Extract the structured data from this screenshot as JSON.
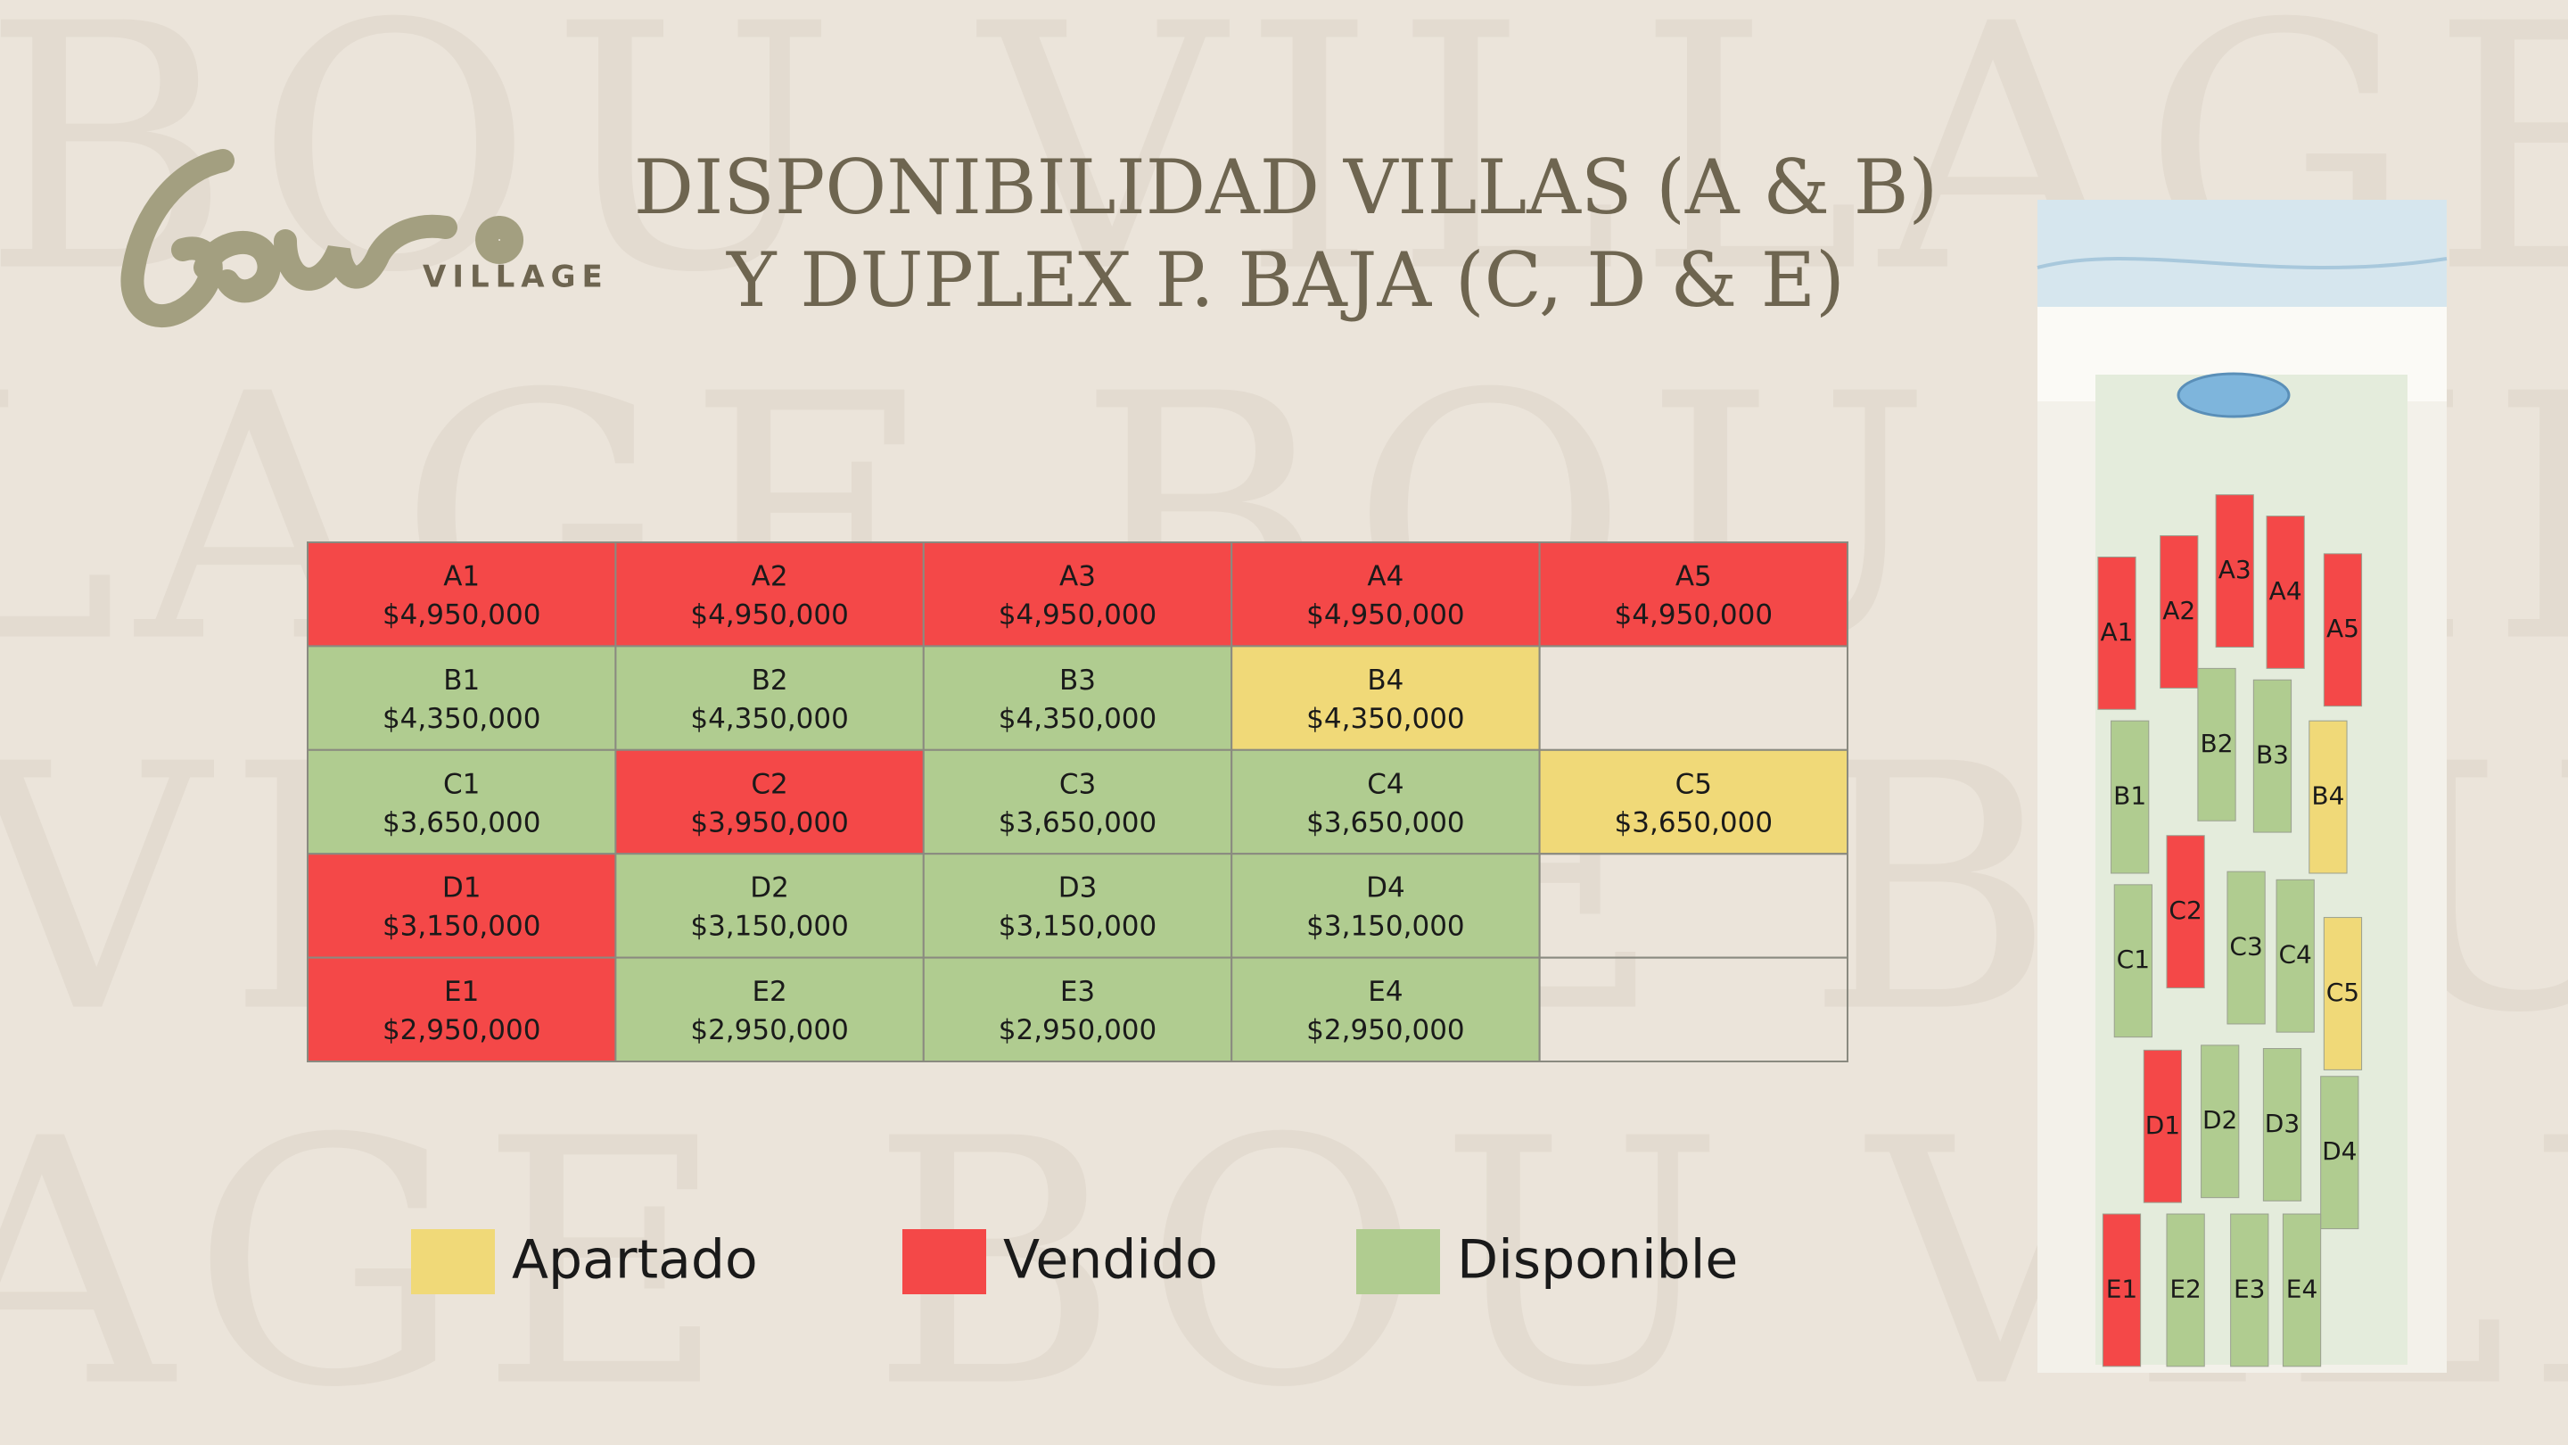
{
  "watermark": [
    "BOU VILLAGE",
    "LAGE BOU VILL",
    "VILLAGE BOU",
    "AGE BOU VILLA"
  ],
  "logo": {
    "text": "VILLAGE"
  },
  "title": [
    "DISPONIBILIDAD VILLAS (A & B)",
    "Y DUPLEX P. BAJA (C, D & E)"
  ],
  "table": {
    "rows": [
      [
        {
          "unit": "A1",
          "price": "$4,950,000",
          "color": "#f44848"
        },
        {
          "unit": "A2",
          "price": "$4,950,000",
          "color": "#f44848"
        },
        {
          "unit": "A3",
          "price": "$4,950,000",
          "color": "#f44848"
        },
        {
          "unit": "A4",
          "price": "$4,950,000",
          "color": "#f44848"
        },
        {
          "unit": "A5",
          "price": "$4,950,000",
          "color": "#f44848"
        }
      ],
      [
        {
          "unit": "B1",
          "price": "$4,350,000",
          "color": "#b0cc90"
        },
        {
          "unit": "B2",
          "price": "$4,350,000",
          "color": "#b0cc90"
        },
        {
          "unit": "B3",
          "price": "$4,350,000",
          "color": "#b0cc90"
        },
        {
          "unit": "B4",
          "price": "$4,350,000",
          "color": "#f0d978"
        },
        null
      ],
      [
        {
          "unit": "C1",
          "price": "$3,650,000",
          "color": "#b0cc90"
        },
        {
          "unit": "C2",
          "price": "$3,950,000",
          "color": "#f44848"
        },
        {
          "unit": "C3",
          "price": "$3,650,000",
          "color": "#b0cc90"
        },
        {
          "unit": "C4",
          "price": "$3,650,000",
          "color": "#b0cc90"
        },
        {
          "unit": "C5",
          "price": "$3,650,000",
          "color": "#f0d978"
        }
      ],
      [
        {
          "unit": "D1",
          "price": "$3,150,000",
          "color": "#f44848"
        },
        {
          "unit": "D2",
          "price": "$3,150,000",
          "color": "#b0cc90"
        },
        {
          "unit": "D3",
          "price": "$3,150,000",
          "color": "#b0cc90"
        },
        {
          "unit": "D4",
          "price": "$3,150,000",
          "color": "#b0cc90"
        },
        null
      ],
      [
        {
          "unit": "E1",
          "price": "$2,950,000",
          "color": "#f44848"
        },
        {
          "unit": "E2",
          "price": "$2,950,000",
          "color": "#b0cc90"
        },
        {
          "unit": "E3",
          "price": "$2,950,000",
          "color": "#b0cc90"
        },
        {
          "unit": "E4",
          "price": "$2,950,000",
          "color": "#b0cc90"
        },
        null
      ]
    ]
  },
  "legend": [
    {
      "label": "Apartado",
      "color": "#f0d978"
    },
    {
      "label": "Vendido",
      "color": "#f44848"
    },
    {
      "label": "Disponible",
      "color": "#b0cc90"
    }
  ],
  "map": {
    "units": [
      {
        "label": "A1",
        "color": "#f44848"
      },
      {
        "label": "A2",
        "color": "#f44848"
      },
      {
        "label": "A3",
        "color": "#f44848"
      },
      {
        "label": "A4",
        "color": "#f44848"
      },
      {
        "label": "A5",
        "color": "#f44848"
      },
      {
        "label": "B1",
        "color": "#b0cc90"
      },
      {
        "label": "B2",
        "color": "#b0cc90"
      },
      {
        "label": "B3",
        "color": "#b0cc90"
      },
      {
        "label": "B4",
        "color": "#f0d978"
      },
      {
        "label": "C1",
        "color": "#b0cc90"
      },
      {
        "label": "C2",
        "color": "#f44848"
      },
      {
        "label": "C3",
        "color": "#b0cc90"
      },
      {
        "label": "C4",
        "color": "#b0cc90"
      },
      {
        "label": "C5",
        "color": "#f0d978"
      },
      {
        "label": "D1",
        "color": "#f44848"
      },
      {
        "label": "D2",
        "color": "#b0cc90"
      },
      {
        "label": "D3",
        "color": "#b0cc90"
      },
      {
        "label": "D4",
        "color": "#b0cc90"
      },
      {
        "label": "E1",
        "color": "#f44848"
      },
      {
        "label": "E2",
        "color": "#b0cc90"
      },
      {
        "label": "E3",
        "color": "#b0cc90"
      },
      {
        "label": "E4",
        "color": "#b0cc90"
      }
    ]
  }
}
